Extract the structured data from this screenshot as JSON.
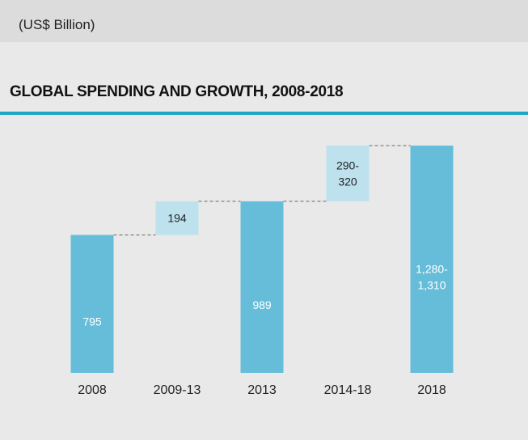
{
  "header": {
    "unit": "(US$ Billion)"
  },
  "title": "GLOBAL SPENDING AND GROWTH, 2008-2018",
  "colors": {
    "total_bar": "#66bdd9",
    "increment_bar": "#bde2ee",
    "accent_rule": "#1aa6c4",
    "connector": "#666666"
  },
  "chart_data": {
    "type": "bar",
    "subtype": "waterfall",
    "unit": "(US$ Billion)",
    "title": "GLOBAL SPENDING AND GROWTH, 2008-2018",
    "categories": [
      "2008",
      "2009-13",
      "2013",
      "2014-18",
      "2018"
    ],
    "bars": [
      {
        "category": "2008",
        "kind": "total",
        "base": 0,
        "low": 795,
        "high": 795,
        "label": "795"
      },
      {
        "category": "2009-13",
        "kind": "increment",
        "base": 795,
        "low": 989,
        "high": 989,
        "label": "194"
      },
      {
        "category": "2013",
        "kind": "total",
        "base": 0,
        "low": 989,
        "high": 989,
        "label": "989"
      },
      {
        "category": "2014-18",
        "kind": "increment",
        "base": 989,
        "low": 1280,
        "high": 1310,
        "label": "290-\n320"
      },
      {
        "category": "2018",
        "kind": "total",
        "base": 0,
        "low": 1280,
        "high": 1310,
        "label": "1,280-\n1,310"
      }
    ],
    "ylim": [
      0,
      1310
    ],
    "grid": false,
    "legend": "none"
  }
}
